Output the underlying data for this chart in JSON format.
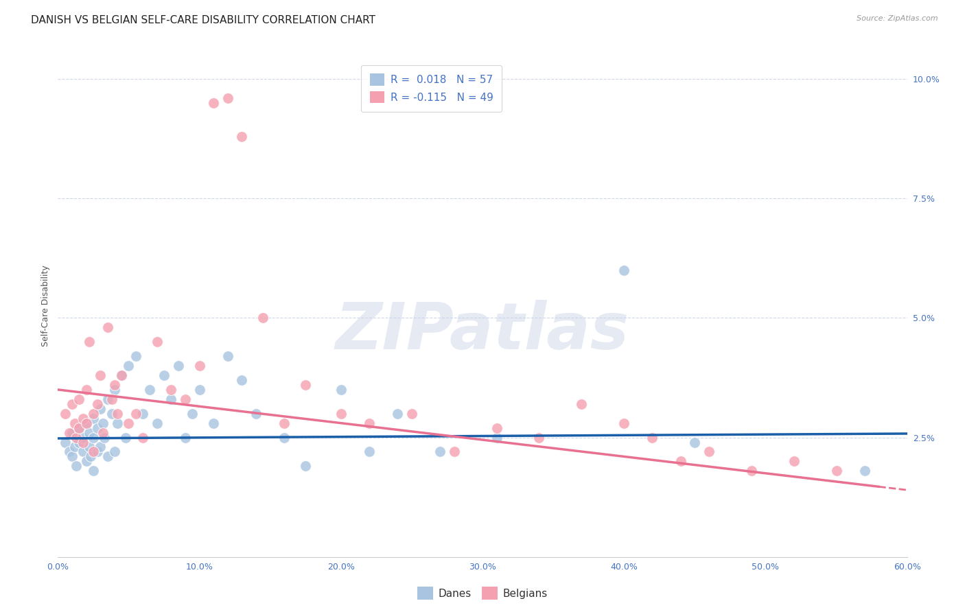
{
  "title": "DANISH VS BELGIAN SELF-CARE DISABILITY CORRELATION CHART",
  "source": "Source: ZipAtlas.com",
  "xlabel_ticks": [
    "0.0%",
    "10.0%",
    "20.0%",
    "30.0%",
    "40.0%",
    "50.0%",
    "60.0%"
  ],
  "xlabel_vals": [
    0.0,
    0.1,
    0.2,
    0.3,
    0.4,
    0.5,
    0.6
  ],
  "ylabel_ticks": [
    "10.0%",
    "7.5%",
    "5.0%",
    "2.5%"
  ],
  "ylabel_vals": [
    0.1,
    0.075,
    0.05,
    0.025
  ],
  "xlim": [
    0.0,
    0.6
  ],
  "ylim": [
    0.0,
    0.105
  ],
  "danes_R": "0.018",
  "danes_N": "57",
  "belgians_R": "-0.115",
  "belgians_N": "49",
  "danes_color": "#a8c4e0",
  "belgians_color": "#f4a0b0",
  "danes_line_color": "#1a5fa8",
  "belgians_line_color": "#e87090",
  "legend_label_danes": "Danes",
  "legend_label_belgians": "Belgians",
  "danes_line_x0": 0.0,
  "danes_line_y0": 0.0248,
  "danes_line_x1": 0.6,
  "danes_line_y1": 0.0258,
  "belgians_line_x0": 0.0,
  "belgians_line_y0": 0.035,
  "belgians_line_x1": 0.6,
  "belgians_line_y1": 0.014,
  "belgians_solid_xend": 0.58,
  "danes_x": [
    0.005,
    0.008,
    0.01,
    0.01,
    0.012,
    0.013,
    0.015,
    0.015,
    0.018,
    0.018,
    0.02,
    0.02,
    0.022,
    0.022,
    0.023,
    0.025,
    0.025,
    0.025,
    0.028,
    0.028,
    0.03,
    0.03,
    0.032,
    0.033,
    0.035,
    0.035,
    0.038,
    0.04,
    0.04,
    0.042,
    0.045,
    0.048,
    0.05,
    0.055,
    0.06,
    0.065,
    0.07,
    0.075,
    0.08,
    0.085,
    0.09,
    0.095,
    0.1,
    0.11,
    0.12,
    0.13,
    0.14,
    0.16,
    0.175,
    0.2,
    0.22,
    0.24,
    0.27,
    0.31,
    0.4,
    0.45,
    0.57
  ],
  "danes_y": [
    0.024,
    0.022,
    0.026,
    0.021,
    0.023,
    0.019,
    0.027,
    0.024,
    0.025,
    0.022,
    0.028,
    0.02,
    0.026,
    0.023,
    0.021,
    0.029,
    0.025,
    0.018,
    0.027,
    0.022,
    0.031,
    0.023,
    0.028,
    0.025,
    0.033,
    0.021,
    0.03,
    0.035,
    0.022,
    0.028,
    0.038,
    0.025,
    0.04,
    0.042,
    0.03,
    0.035,
    0.028,
    0.038,
    0.033,
    0.04,
    0.025,
    0.03,
    0.035,
    0.028,
    0.042,
    0.037,
    0.03,
    0.025,
    0.019,
    0.035,
    0.022,
    0.03,
    0.022,
    0.025,
    0.06,
    0.024,
    0.018
  ],
  "belgians_x": [
    0.005,
    0.008,
    0.01,
    0.012,
    0.013,
    0.015,
    0.015,
    0.018,
    0.018,
    0.02,
    0.02,
    0.022,
    0.025,
    0.025,
    0.028,
    0.03,
    0.032,
    0.035,
    0.038,
    0.04,
    0.042,
    0.045,
    0.05,
    0.055,
    0.06,
    0.07,
    0.08,
    0.09,
    0.1,
    0.11,
    0.12,
    0.13,
    0.145,
    0.16,
    0.175,
    0.2,
    0.22,
    0.25,
    0.28,
    0.31,
    0.34,
    0.37,
    0.4,
    0.42,
    0.44,
    0.46,
    0.49,
    0.52,
    0.55
  ],
  "belgians_y": [
    0.03,
    0.026,
    0.032,
    0.028,
    0.025,
    0.033,
    0.027,
    0.029,
    0.024,
    0.035,
    0.028,
    0.045,
    0.03,
    0.022,
    0.032,
    0.038,
    0.026,
    0.048,
    0.033,
    0.036,
    0.03,
    0.038,
    0.028,
    0.03,
    0.025,
    0.045,
    0.035,
    0.033,
    0.04,
    0.095,
    0.096,
    0.088,
    0.05,
    0.028,
    0.036,
    0.03,
    0.028,
    0.03,
    0.022,
    0.027,
    0.025,
    0.032,
    0.028,
    0.025,
    0.02,
    0.022,
    0.018,
    0.02,
    0.018
  ],
  "watermark": "ZIPatlas",
  "background_color": "#ffffff",
  "grid_color": "#d0d8e8",
  "title_fontsize": 11,
  "axis_label_fontsize": 9,
  "tick_fontsize": 9,
  "source_fontsize": 8,
  "legend_fontsize": 11
}
